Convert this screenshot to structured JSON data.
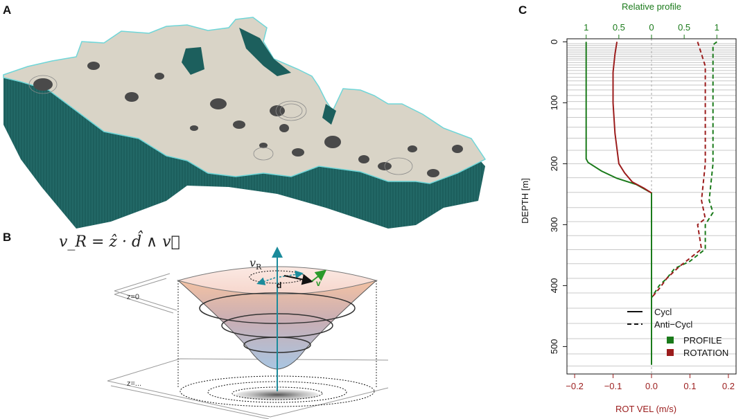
{
  "panels": {
    "a": "A",
    "b": "B",
    "c": "C"
  },
  "panel_b": {
    "formula": "v_R = ẑ · d̂ ∧ v⃗",
    "v_label": "v",
    "v_sub": "R",
    "d_label": "d",
    "vec_label": "v",
    "z0_label": "z=0",
    "zdots_label": "z=..."
  },
  "colors": {
    "land": "#d9d4c7",
    "sea_wall": "#1c5f5d",
    "coast": "#6fd6d8",
    "profile_green": "#1a7a1a",
    "rotation_red": "#9b1c1c",
    "axis_teal": "#1b8b9b"
  },
  "chart_data": {
    "type": "line",
    "top_axis_label": "Relative profile",
    "top_ticks": [
      "1",
      "0.5",
      "0",
      "0.5",
      "1"
    ],
    "xlabel": "ROT VEL (m/s)",
    "ylabel": "DEPTH [m]",
    "xlim": [
      -0.22,
      0.22
    ],
    "ylim": [
      545,
      -5
    ],
    "xticks": [
      -0.2,
      -0.1,
      0.0,
      0.1,
      0.2
    ],
    "yticks": [
      0,
      100,
      200,
      300,
      400,
      500
    ],
    "grid_depths": [
      3,
      6,
      9,
      12,
      15,
      18,
      21,
      24,
      27,
      30,
      34,
      38,
      42,
      47,
      52,
      58,
      64,
      71,
      79,
      88,
      98,
      110,
      124,
      140,
      158,
      178,
      200,
      223,
      247,
      272,
      295,
      318,
      341,
      364,
      388,
      412,
      437,
      462,
      487,
      512,
      532
    ],
    "legend": {
      "cycl": "Cycl",
      "anti": "Anti−Cycl",
      "profile": "PROFILE",
      "rotation": "ROTATION"
    },
    "series": [
      {
        "name": "PROFILE",
        "style": "solid",
        "color": "#1a7a1a",
        "x": [
          -0.17,
          -0.17,
          -0.17,
          -0.165,
          -0.13,
          -0.09,
          -0.04,
          0.0,
          0.0,
          0.0,
          0.0
        ],
        "y": [
          0,
          100,
          192,
          198,
          212,
          224,
          234,
          248,
          300,
          450,
          530
        ]
      },
      {
        "name": "ROTATION",
        "style": "solid",
        "color": "#9b1c1c",
        "x": [
          -0.09,
          -0.095,
          -0.1,
          -0.1,
          -0.095,
          -0.085,
          -0.07,
          -0.05,
          -0.02,
          0.0
        ],
        "y": [
          0,
          20,
          50,
          100,
          150,
          200,
          215,
          230,
          240,
          248
        ]
      },
      {
        "name": "PROFILE",
        "style": "dashed",
        "color": "#1a7a1a",
        "x": [
          0.17,
          0.16,
          0.16,
          0.16,
          0.15,
          0.16,
          0.14,
          0.14,
          0.12,
          0.1,
          0.06,
          0.04,
          0.02,
          0.0,
          0.0
        ],
        "y": [
          0,
          5,
          50,
          200,
          260,
          280,
          300,
          340,
          350,
          360,
          372,
          388,
          400,
          420,
          530
        ]
      },
      {
        "name": "ROTATION",
        "style": "dashed",
        "color": "#9b1c1c",
        "x": [
          0.12,
          0.13,
          0.14,
          0.14,
          0.13,
          0.14,
          0.12,
          0.13,
          0.1,
          0.07,
          0.04,
          0.02,
          0.0
        ],
        "y": [
          0,
          20,
          40,
          200,
          260,
          290,
          300,
          340,
          355,
          370,
          388,
          405,
          420
        ]
      }
    ]
  }
}
